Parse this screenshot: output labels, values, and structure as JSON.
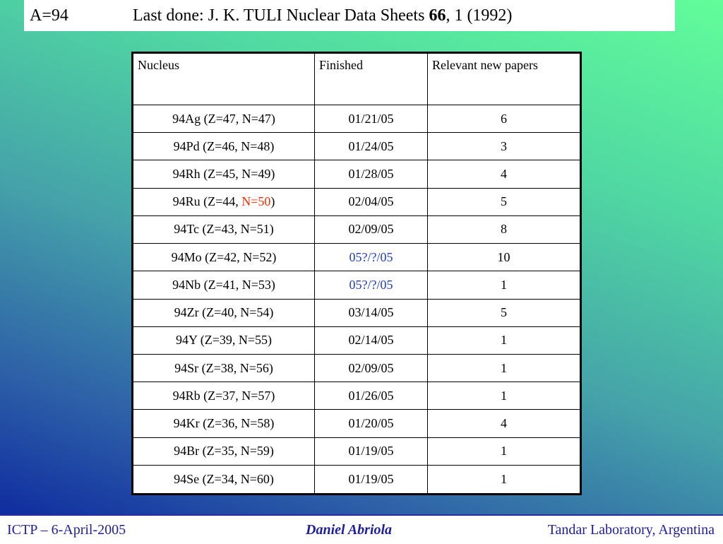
{
  "title": {
    "label": "A=94",
    "note_prefix": "Last done: J. K. TULI Nuclear Data Sheets ",
    "note_volume": "66",
    "note_suffix": ", 1 (1992)"
  },
  "table": {
    "headers": [
      "Nucleus",
      "Finished",
      "Relevant new papers"
    ],
    "rows": [
      {
        "nucleus": "94Ag (Z=47, N=47)",
        "finished": "01/21/05",
        "papers": "6"
      },
      {
        "nucleus": "94Pd (Z=46, N=48)",
        "finished": "01/24/05",
        "papers": "3"
      },
      {
        "nucleus": "94Rh (Z=45, N=49)",
        "finished": "01/28/05",
        "papers": "4"
      },
      {
        "nucleus_prefix": "94Ru (Z=44, ",
        "nucleus_highlight": "N=50",
        "nucleus_suffix": ")",
        "finished": "02/04/05",
        "papers": "5"
      },
      {
        "nucleus": "94Tc (Z=43, N=51)",
        "finished": "02/09/05",
        "papers": "8"
      },
      {
        "nucleus": "94Mo (Z=42, N=52)",
        "finished": "05?/?/05",
        "papers": "10"
      },
      {
        "nucleus": "94Nb (Z=41, N=53)",
        "finished": "05?/?/05",
        "papers": "1"
      },
      {
        "nucleus": "94Zr (Z=40, N=54)",
        "finished": "03/14/05",
        "papers": "5"
      },
      {
        "nucleus": "94Y (Z=39, N=55)",
        "finished": "02/14/05",
        "papers": "1"
      },
      {
        "nucleus": "94Sr (Z=38, N=56)",
        "finished": "02/09/05",
        "papers": "1"
      },
      {
        "nucleus": "94Rb (Z=37, N=57)",
        "finished": "01/26/05",
        "papers": "1"
      },
      {
        "nucleus": "94Kr (Z=36, N=58)",
        "finished": "01/20/05",
        "papers": "4"
      },
      {
        "nucleus": "94Br (Z=35, N=59)",
        "finished": "01/19/05",
        "papers": "1"
      },
      {
        "nucleus": "94Se (Z=34, N=60)",
        "finished": "01/19/05",
        "papers": "1"
      }
    ]
  },
  "footer": {
    "left": "ICTP – 6-April-2005",
    "center": "Daniel Abriola",
    "right": "Tandar Laboratory, Argentina"
  },
  "colors": {
    "highlight_red": "#ff2a00",
    "pending_blue": "#1f3bd6",
    "footer_text": "#1e1e9c"
  }
}
